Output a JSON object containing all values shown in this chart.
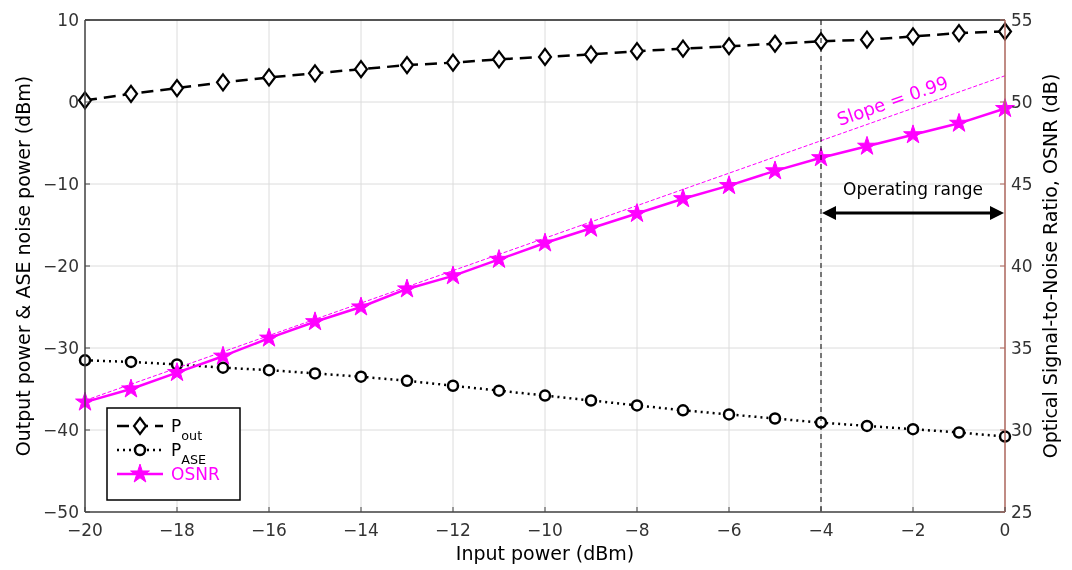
{
  "chart_data": {
    "type": "line",
    "xlabel": "Input power (dBm)",
    "ylabel": "Output power & ASE noise power (dBm)",
    "y2label": "Optical Signal-to-Noise Ratio, OSNR (dB)",
    "x": [
      -20,
      -19,
      -18,
      -17,
      -16,
      -15,
      -14,
      -13,
      -12,
      -11,
      -10,
      -9,
      -8,
      -7,
      -6,
      -5,
      -4,
      -3,
      -2,
      -1,
      0
    ],
    "xlim": [
      -20,
      0
    ],
    "xticks": [
      -20,
      -18,
      -16,
      -14,
      -12,
      -10,
      -8,
      -6,
      -4,
      -2,
      0
    ],
    "ylim": [
      -50,
      10
    ],
    "yticks": [
      -50,
      -40,
      -30,
      -20,
      -10,
      0,
      10
    ],
    "y2lim": [
      25,
      55
    ],
    "y2ticks": [
      25,
      30,
      35,
      40,
      45,
      50,
      55
    ],
    "grid": true,
    "legend": "bottom left",
    "series": [
      {
        "name": "P$_{out}$",
        "color": "#000000",
        "type": "line",
        "marker": "diamond",
        "line_style": "dashed",
        "values": [
          0.2,
          1.0,
          1.7,
          2.4,
          3.0,
          3.5,
          4.0,
          4.5,
          4.8,
          5.2,
          5.5,
          5.8,
          6.2,
          6.5,
          6.8,
          7.1,
          7.4,
          7.6,
          8.0,
          8.4,
          8.6
        ]
      },
      {
        "name": "P$_{ASE}$",
        "color": "#000000",
        "type": "line",
        "marker": "circle",
        "line_style": "dotted",
        "values": [
          -31.5,
          -31.7,
          -32.0,
          -32.4,
          -32.7,
          -33.1,
          -33.5,
          -34.0,
          -34.6,
          -35.2,
          -35.8,
          -36.4,
          -37.0,
          -37.6,
          -38.1,
          -38.6,
          -39.1,
          -39.5,
          -39.9,
          -40.3,
          -40.8
        ]
      },
      {
        "name": "OSNR",
        "color": "#ff00ff",
        "type": "line",
        "marker": "star",
        "line_style": "solid",
        "axis": "y2",
        "values": [
          31.7,
          32.5,
          33.5,
          34.5,
          35.6,
          36.6,
          37.5,
          38.6,
          39.4,
          40.4,
          41.4,
          42.3,
          43.2,
          44.1,
          44.9,
          45.8,
          46.6,
          47.3,
          48.0,
          48.7,
          49.6
        ]
      },
      {
        "color": "#ff00ff",
        "type": "line",
        "marker": "none",
        "line_style": "dashed",
        "axis": "y2",
        "x": [
          -20,
          0
        ],
        "values": [
          31.8,
          51.6
        ]
      }
    ],
    "ref_lines": [
      {
        "axis": "x",
        "value": -4,
        "color": "#000000",
        "line_style": "dashed"
      }
    ],
    "annotations": [
      "Slope = 0.99",
      "Operating range"
    ]
  }
}
